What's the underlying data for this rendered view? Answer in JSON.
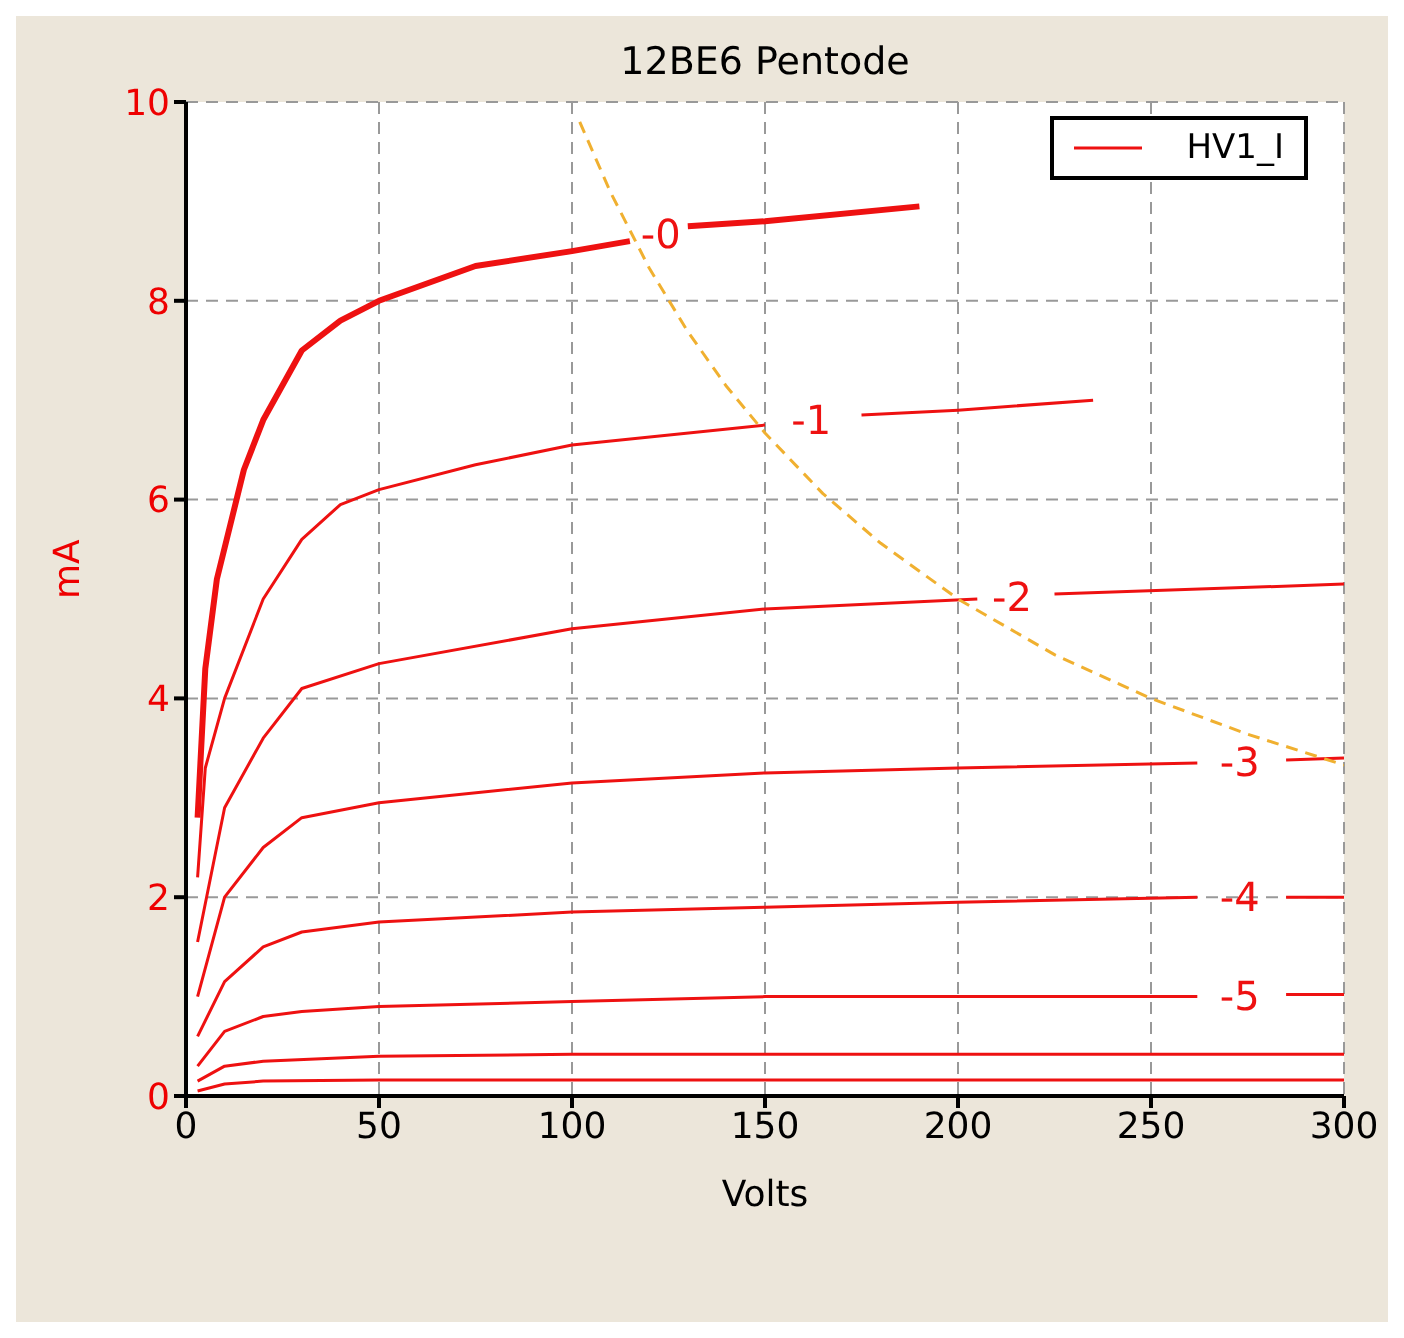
{
  "chart_data": {
    "type": "line",
    "title": "12BE6 Pentode",
    "xlabel": "Volts",
    "ylabel": "mA",
    "xlim": [
      0,
      300
    ],
    "ylim": [
      0,
      10
    ],
    "xticks": [
      0,
      50,
      100,
      150,
      200,
      250,
      300
    ],
    "yticks": [
      0,
      2,
      4,
      6,
      8,
      10
    ],
    "grid": true,
    "legend": "top right",
    "marker": "none",
    "line_style": "solid",
    "series": [
      {
        "color": "#ee1111",
        "x": [
          3,
          5,
          8,
          15,
          20,
          30,
          40,
          50,
          75,
          100,
          115,
          123,
          130,
          150,
          190
        ],
        "values": [
          2.8,
          4.3,
          5.2,
          6.3,
          6.8,
          7.5,
          7.8,
          8.0,
          8.35,
          8.5,
          8.6,
          null,
          8.75,
          8.8,
          8.95
        ]
      },
      {
        "name": "HV1_I",
        "color": "#ee1111",
        "x": [
          3,
          5,
          10,
          20,
          30,
          40,
          50,
          75,
          100,
          150,
          162,
          175,
          200,
          235
        ],
        "values": [
          2.2,
          3.3,
          4.0,
          5.0,
          5.6,
          5.95,
          6.1,
          6.35,
          6.55,
          6.75,
          null,
          6.85,
          6.9,
          7.0
        ]
      },
      {
        "color": "#ee1111",
        "x": [
          3,
          10,
          20,
          30,
          50,
          100,
          150,
          205,
          214,
          225,
          300
        ],
        "values": [
          1.55,
          2.9,
          3.6,
          4.1,
          4.35,
          4.7,
          4.9,
          5.0,
          null,
          5.05,
          5.15
        ]
      },
      {
        "color": "#ee1111",
        "x": [
          3,
          10,
          20,
          30,
          50,
          100,
          150,
          200,
          262,
          273,
          285,
          300
        ],
        "values": [
          1.0,
          2.0,
          2.5,
          2.8,
          2.95,
          3.15,
          3.25,
          3.3,
          3.35,
          null,
          3.38,
          3.4
        ]
      },
      {
        "color": "#ee1111",
        "x": [
          3,
          10,
          20,
          30,
          50,
          100,
          150,
          200,
          262,
          273,
          285,
          300
        ],
        "values": [
          0.6,
          1.15,
          1.5,
          1.65,
          1.75,
          1.85,
          1.9,
          1.95,
          2.0,
          null,
          2.0,
          2.0
        ]
      },
      {
        "color": "#ee1111",
        "x": [
          3,
          10,
          20,
          30,
          50,
          100,
          150,
          262,
          273,
          285,
          300
        ],
        "values": [
          0.3,
          0.65,
          0.8,
          0.85,
          0.9,
          0.95,
          1.0,
          1.0,
          null,
          1.02,
          1.02
        ]
      },
      {
        "color": "#ee1111",
        "x": [
          3,
          10,
          20,
          50,
          100,
          300
        ],
        "values": [
          0.15,
          0.3,
          0.35,
          0.4,
          0.42,
          0.42
        ]
      },
      {
        "color": "#ee1111",
        "x": [
          3,
          10,
          20,
          50,
          300
        ],
        "values": [
          0.05,
          0.12,
          0.15,
          0.16,
          0.16
        ]
      },
      {
        "color": "#f0b030",
        "line_style": "dashed",
        "x": [
          102,
          110,
          120,
          130,
          140,
          150,
          165,
          180,
          200,
          225,
          250,
          275,
          300
        ],
        "values": [
          9.8,
          9.09,
          8.33,
          7.69,
          7.14,
          6.67,
          6.06,
          5.56,
          5.0,
          4.44,
          4.0,
          3.64,
          3.33
        ]
      }
    ],
    "annotations": [
      "-0",
      "-1",
      "-2",
      "-3",
      "-4",
      "-5"
    ]
  }
}
